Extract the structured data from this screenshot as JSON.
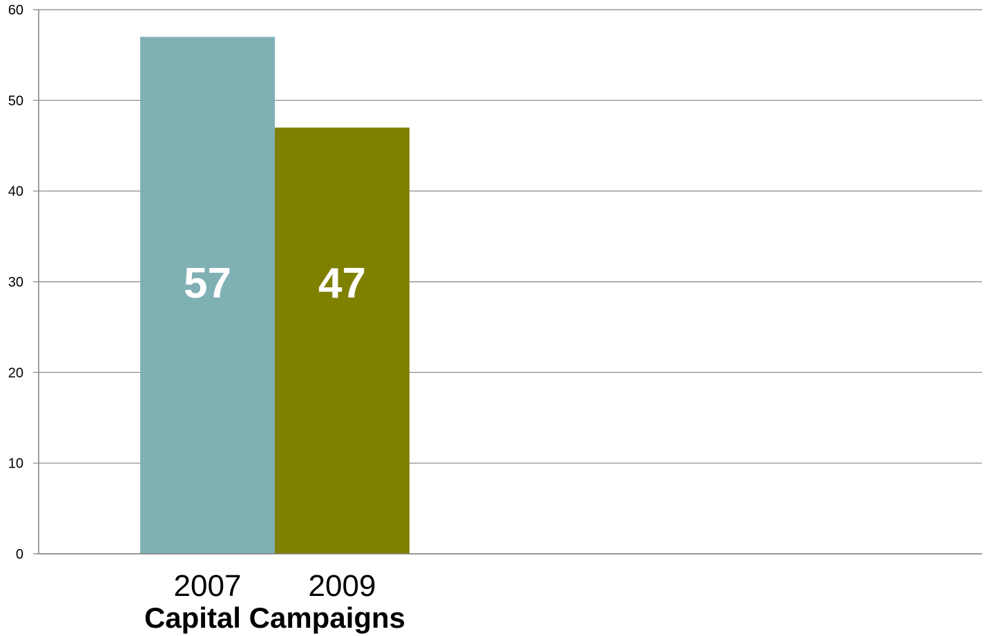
{
  "chart_data": {
    "type": "bar",
    "group_label": "Capital Campaigns",
    "series": [
      {
        "name": "2007",
        "values": [
          57
        ],
        "color": "#7fb0b4"
      },
      {
        "name": "2009",
        "values": [
          47
        ],
        "color": "#808000"
      }
    ],
    "y_ticks": [
      "0",
      "10",
      "20",
      "30",
      "40",
      "50",
      "60"
    ],
    "ylim": [
      0,
      60
    ],
    "grid": true,
    "legend": "none"
  }
}
